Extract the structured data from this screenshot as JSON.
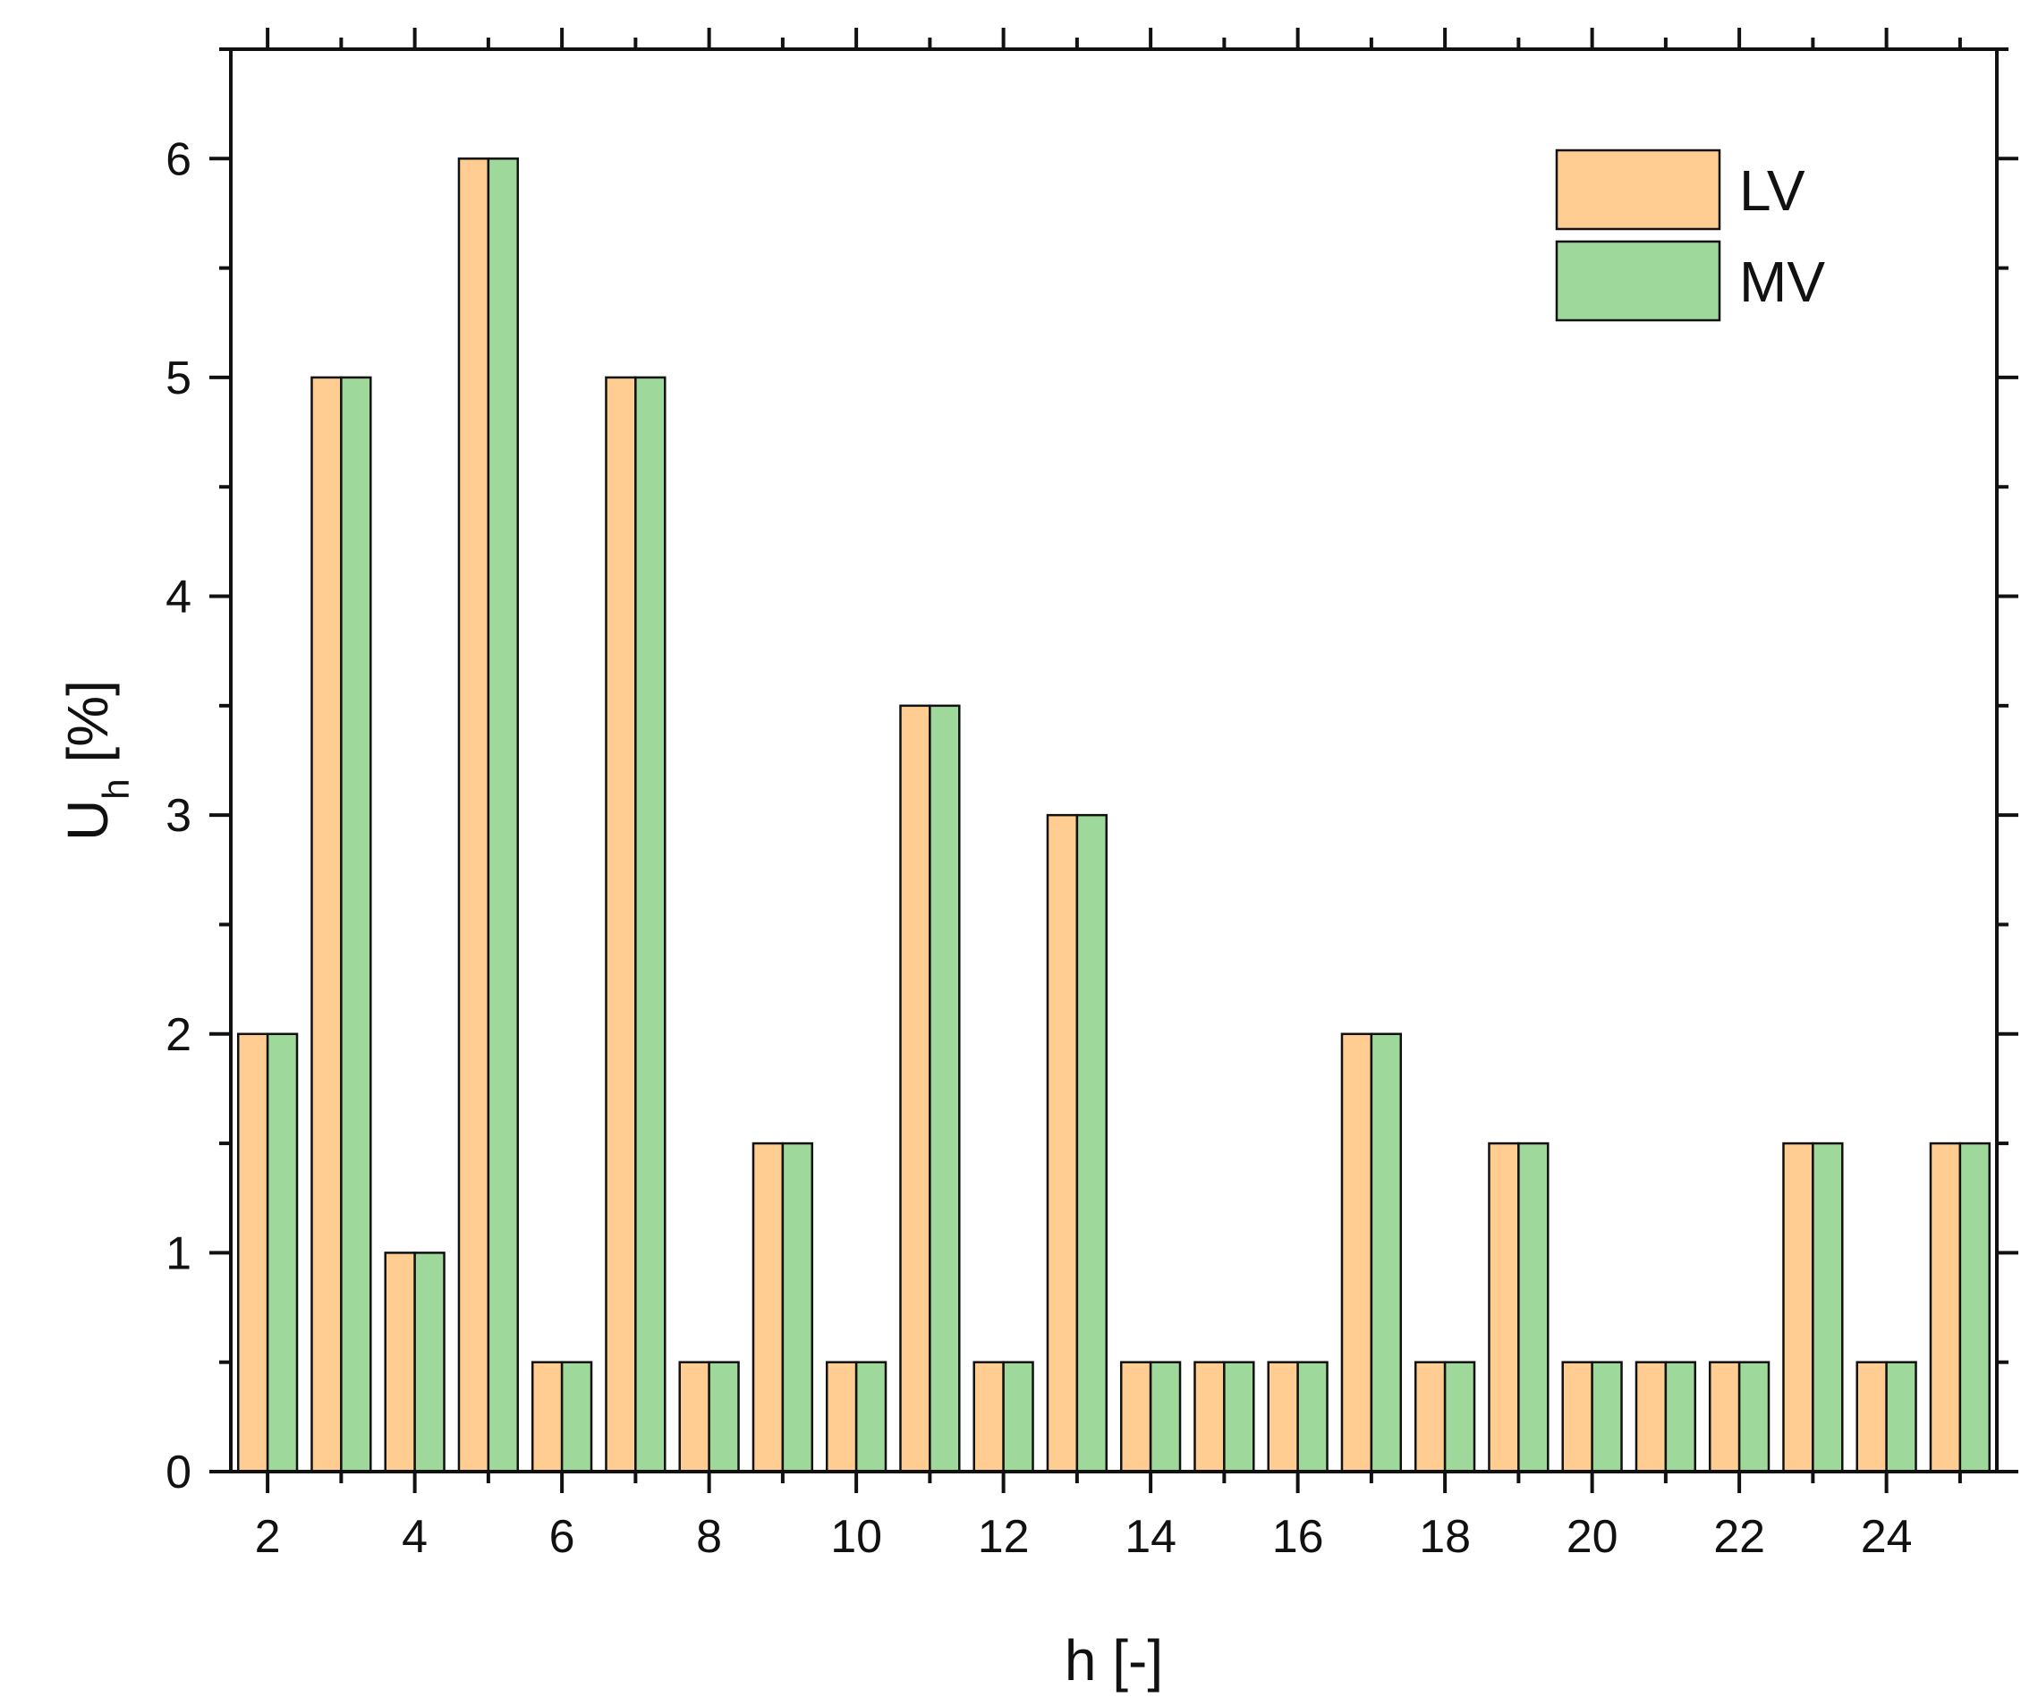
{
  "chart_data": {
    "type": "bar",
    "xlabel": "h [-]",
    "ylabel_main": "U",
    "ylabel_sub": "h",
    "ylabel_rest": " [%]",
    "xlim": [
      1.5,
      25.5
    ],
    "ylim": [
      0,
      6.5
    ],
    "x_ticks": [
      2,
      4,
      6,
      8,
      10,
      12,
      14,
      16,
      18,
      20,
      22,
      24
    ],
    "y_ticks": [
      0,
      1,
      2,
      3,
      4,
      5,
      6
    ],
    "categories": [
      2,
      3,
      4,
      5,
      6,
      7,
      8,
      9,
      10,
      11,
      12,
      13,
      14,
      15,
      16,
      17,
      18,
      19,
      20,
      21,
      22,
      23,
      24,
      25
    ],
    "series": [
      {
        "name": "LV",
        "color": "#FFCC91",
        "values": [
          2,
          5,
          1,
          6,
          0.5,
          5,
          0.5,
          1.5,
          0.5,
          3.5,
          0.5,
          3,
          0.5,
          0.5,
          0.5,
          2,
          0.5,
          1.5,
          0.5,
          0.5,
          0.5,
          1.5,
          0.5,
          1.5
        ]
      },
      {
        "name": "MV",
        "color": "#9ED89A",
        "values": [
          2,
          5,
          1,
          6,
          0.5,
          5,
          0.5,
          1.5,
          0.5,
          3.5,
          0.5,
          3,
          0.5,
          0.5,
          0.5,
          2,
          0.5,
          1.5,
          0.5,
          0.5,
          0.5,
          1.5,
          0.5,
          1.5
        ]
      }
    ],
    "legend_position": "top-right",
    "grid": false
  }
}
